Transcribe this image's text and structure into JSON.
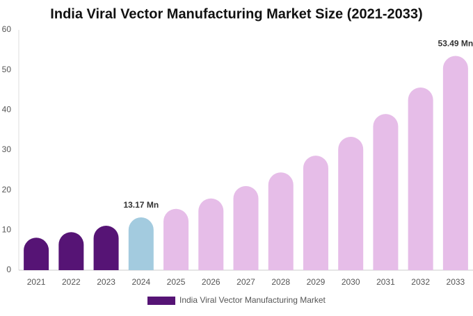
{
  "chart_data": {
    "type": "bar",
    "title": "India Viral Vector Manufacturing Market Size (2021-2033)",
    "categories": [
      "2021",
      "2022",
      "2023",
      "2024",
      "2025",
      "2026",
      "2027",
      "2028",
      "2029",
      "2030",
      "2031",
      "2032",
      "2033"
    ],
    "series": [
      {
        "name": "India Viral Vector Manufacturing Market",
        "color": "#561475",
        "colors": [
          "#561475",
          "#561475",
          "#561475",
          "#a3cbdf",
          "#e6bde8",
          "#e6bde8",
          "#e6bde8",
          "#e6bde8",
          "#e6bde8",
          "#e6bde8",
          "#e6bde8",
          "#e6bde8",
          "#e6bde8"
        ],
        "values": [
          8.1,
          9.5,
          11.1,
          13.17,
          15.3,
          17.9,
          21.0,
          24.4,
          28.6,
          33.3,
          39.0,
          45.6,
          53.49
        ],
        "value_labels": [
          null,
          null,
          null,
          "13.17 Mn",
          null,
          null,
          null,
          null,
          null,
          null,
          null,
          null,
          "53.49 Mn"
        ]
      }
    ],
    "ylim": [
      0,
      60
    ],
    "yticks": [
      0,
      10,
      20,
      30,
      40,
      50,
      60
    ],
    "grid": false
  }
}
